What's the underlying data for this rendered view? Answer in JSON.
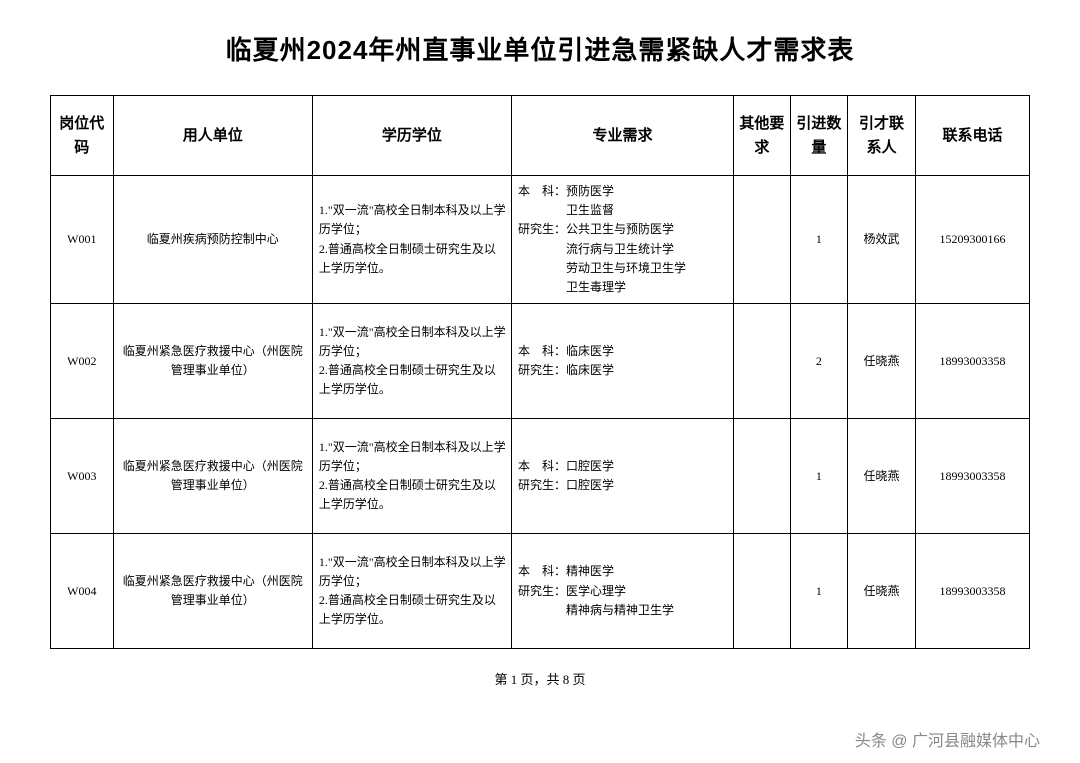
{
  "title": "临夏州2024年州直事业单位引进急需紧缺人才需求表",
  "columns": {
    "code": "岗位代码",
    "unit": "用人单位",
    "edu": "学历学位",
    "major": "专业需求",
    "other": "其他要求",
    "qty": "引进数量",
    "contact": "引才联系人",
    "phone": "联系电话"
  },
  "rows": [
    {
      "code": "W001",
      "unit": "临夏州疾病预防控制中心",
      "edu": "1.\"双一流\"高校全日制本科及以上学历学位；\n2.普通高校全日制硕士研究生及以上学历学位。",
      "major": "本　科：预防医学\n　　　　卫生监督\n研究生：公共卫生与预防医学\n　　　　流行病与卫生统计学\n　　　　劳动卫生与环境卫生学\n　　　　卫生毒理学",
      "other": "",
      "qty": "1",
      "contact": "杨效武",
      "phone": "15209300166"
    },
    {
      "code": "W002",
      "unit": "临夏州紧急医疗救援中心（州医院管理事业单位）",
      "edu": "1.\"双一流\"高校全日制本科及以上学历学位；\n2.普通高校全日制硕士研究生及以上学历学位。",
      "major": "本　科：临床医学\n研究生：临床医学",
      "other": "",
      "qty": "2",
      "contact": "任晓燕",
      "phone": "18993003358"
    },
    {
      "code": "W003",
      "unit": "临夏州紧急医疗救援中心（州医院管理事业单位）",
      "edu": "1.\"双一流\"高校全日制本科及以上学历学位；\n2.普通高校全日制硕士研究生及以上学历学位。",
      "major": "本　科：口腔医学\n研究生：口腔医学",
      "other": "",
      "qty": "1",
      "contact": "任晓燕",
      "phone": "18993003358"
    },
    {
      "code": "W004",
      "unit": "临夏州紧急医疗救援中心（州医院管理事业单位）",
      "edu": "1.\"双一流\"高校全日制本科及以上学历学位；\n2.普通高校全日制硕士研究生及以上学历学位。",
      "major": "本　科：精神医学\n研究生：医学心理学\n　　　　精神病与精神卫生学",
      "other": "",
      "qty": "1",
      "contact": "任晓燕",
      "phone": "18993003358"
    }
  ],
  "footer": "第 1 页，共 8 页",
  "watermark": "头条 @ 广河县融媒体中心"
}
